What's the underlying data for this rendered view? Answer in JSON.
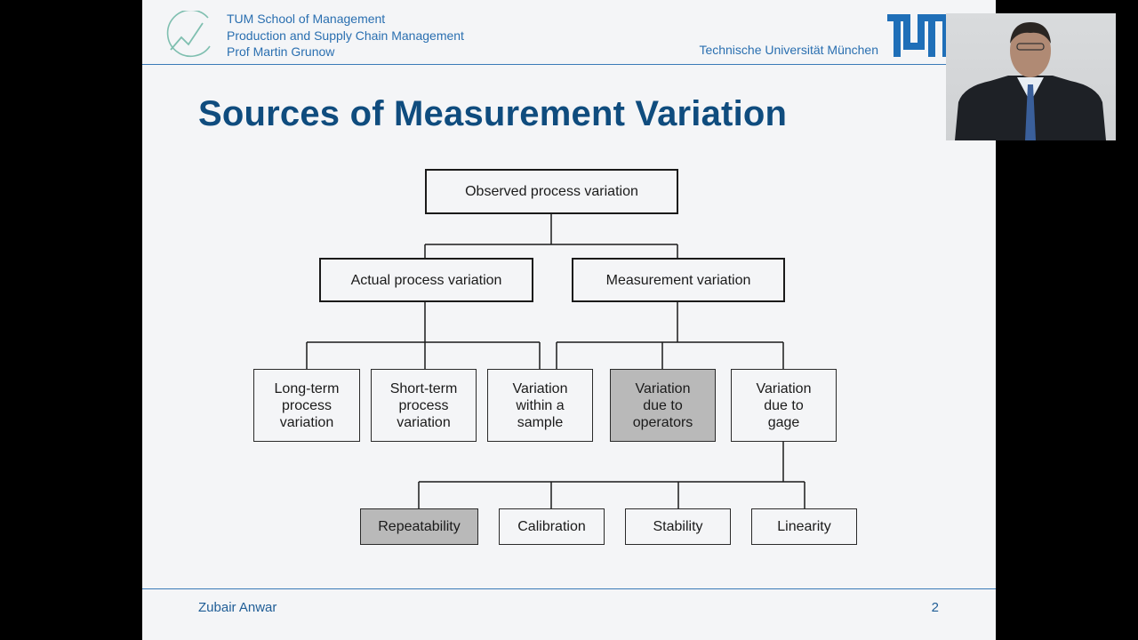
{
  "header": {
    "school": "TUM School of Management",
    "chair": "Production and Supply Chain Management",
    "professor": "Prof Martin Grunow",
    "university": "Technische Universität München",
    "logo_text": "TUM"
  },
  "slide": {
    "title": "Sources of Measurement Variation",
    "footer_author": "Zubair Anwar",
    "page_number": "2"
  },
  "diagram": {
    "root": "Observed process variation",
    "level1": {
      "actual": "Actual process variation",
      "measurement": "Measurement variation"
    },
    "level2": {
      "long_term": [
        "Long-term",
        "process",
        "variation"
      ],
      "short_term": [
        "Short-term",
        "process",
        "variation"
      ],
      "within_sample": [
        "Variation",
        "within a",
        "sample"
      ],
      "operators": [
        "Variation",
        "due to",
        "operators"
      ],
      "gage": [
        "Variation",
        "due to",
        "gage"
      ]
    },
    "level3": {
      "repeatability": "Repeatability",
      "calibration": "Calibration",
      "stability": "Stability",
      "linearity": "Linearity"
    },
    "shaded_color": "#b9b9b9"
  },
  "colors": {
    "accent": "#2a6fb0",
    "title": "#0f4c7e",
    "background": "#f4f5f7"
  }
}
